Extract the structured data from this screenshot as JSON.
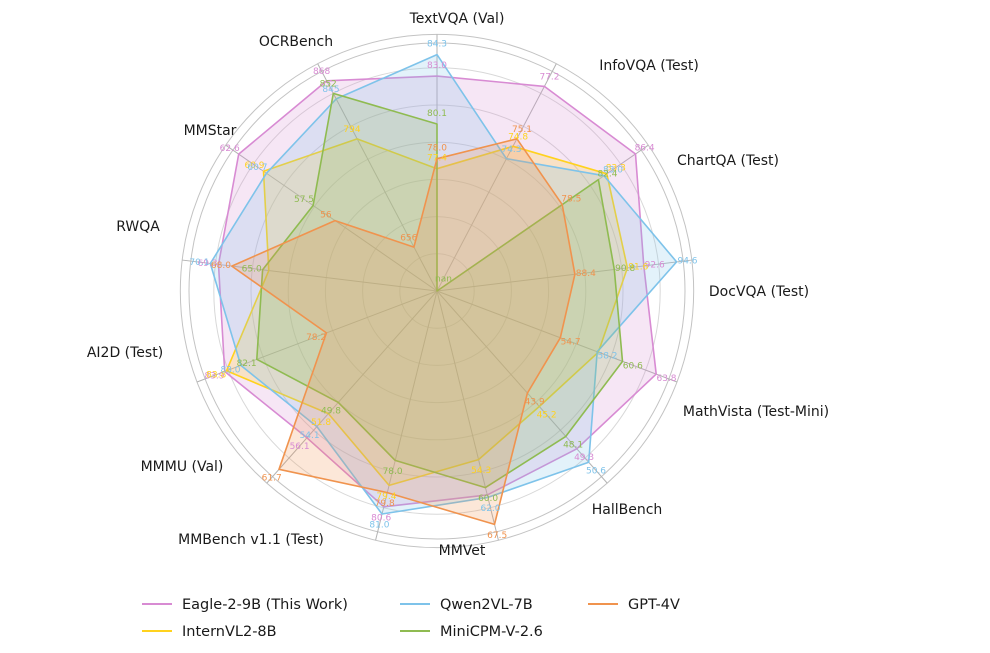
{
  "chart_data": {
    "type": "radar",
    "title": "",
    "legend_position": "bottom",
    "grid": true,
    "categories": [
      "TextVQA (Val)",
      "InfoVQA (Test)",
      "ChartQA (Test)",
      "DocVQA (Test)",
      "MathVista (Test-Mini)",
      "HallBench",
      "MMVet",
      "MMBench v1.1 (Test)",
      "MMMU (Val)",
      "AI2D (Test)",
      "RWQA",
      "MMStar",
      "OCRBench"
    ],
    "axis_ranges": [
      [
        70,
        85
      ],
      [
        69,
        77.8
      ],
      [
        65,
        87
      ],
      [
        80,
        95
      ],
      [
        43,
        65
      ],
      [
        34,
        52
      ],
      [
        20,
        69
      ],
      [
        68.5,
        82
      ],
      [
        30,
        63
      ],
      [
        72,
        85
      ],
      [
        48,
        72
      ],
      [
        49,
        63
      ],
      [
        600,
        880
      ]
    ],
    "series": [
      {
        "name": "Eagle-2-9B (This Work)",
        "color": "#D88BD3",
        "values": [
          83.0,
          77.2,
          86.4,
          92.6,
          63.8,
          49.3,
          61.5,
          80.6,
          56.1,
          83.9,
          69.3,
          62.6,
          868
        ],
        "labels": [
          "83.0",
          "77.2",
          "86.4",
          "92.6",
          "63.8",
          "49.3",
          "",
          "80.6",
          "56.1",
          "83.9",
          "69.3",
          "62.6",
          "868"
        ]
      },
      {
        "name": "InternVL2-8B",
        "color": "#FFD21E",
        "values": [
          77.4,
          74.8,
          83.3,
          91.6,
          58.3,
          45.2,
          54.3,
          79.4,
          51.8,
          83.8,
          64.4,
          60.9,
          794
        ],
        "labels": [
          "77.4",
          "74.8",
          "83.3",
          "91.6",
          "",
          "45.2",
          "54.3",
          "79.4",
          "51.8",
          "83.8",
          "",
          "60.9",
          "794"
        ]
      },
      {
        "name": "Qwen2VL-7B",
        "color": "#7EC3EA",
        "values": [
          84.3,
          74.3,
          83.0,
          94.6,
          58.2,
          50.6,
          62.0,
          81.0,
          54.1,
          83.0,
          70.1,
          60.7,
          845
        ],
        "labels": [
          "84.3",
          "74.3",
          "83.0",
          "94.6",
          "58.2",
          "50.6",
          "62.0",
          "81.0",
          "54.1",
          "83.0",
          "70.1",
          "60.7",
          "845"
        ]
      },
      {
        "name": "MiniCPM-V-2.6",
        "color": "#8FBB51",
        "values": [
          80.1,
          null,
          82.4,
          90.8,
          60.6,
          48.1,
          60.0,
          78.0,
          49.8,
          82.1,
          65.0,
          57.5,
          852
        ],
        "labels": [
          "80.1",
          "nan",
          "82.4",
          "90.8",
          "60.6",
          "48.1",
          "60.0",
          "78.0",
          "49.8",
          "82.1",
          "65.0",
          "57.5",
          "852"
        ]
      },
      {
        "name": "GPT-4V",
        "color": "#F0934E",
        "values": [
          78.0,
          75.1,
          78.5,
          88.4,
          54.7,
          43.9,
          67.5,
          79.8,
          61.7,
          78.2,
          68.0,
          56.0,
          656
        ],
        "labels": [
          "78.0",
          "75.1",
          "78.5",
          "88.4",
          "54.7",
          "43.9",
          "67.5",
          "79.8",
          "61.7",
          "78.2",
          "68.0",
          "56",
          "656"
        ]
      }
    ],
    "legend": [
      "Eagle-2-9B (This Work)",
      "InternVL2-8B",
      "Qwen2VL-7B",
      "MiniCPM-V-2.6",
      "GPT-4V"
    ]
  }
}
